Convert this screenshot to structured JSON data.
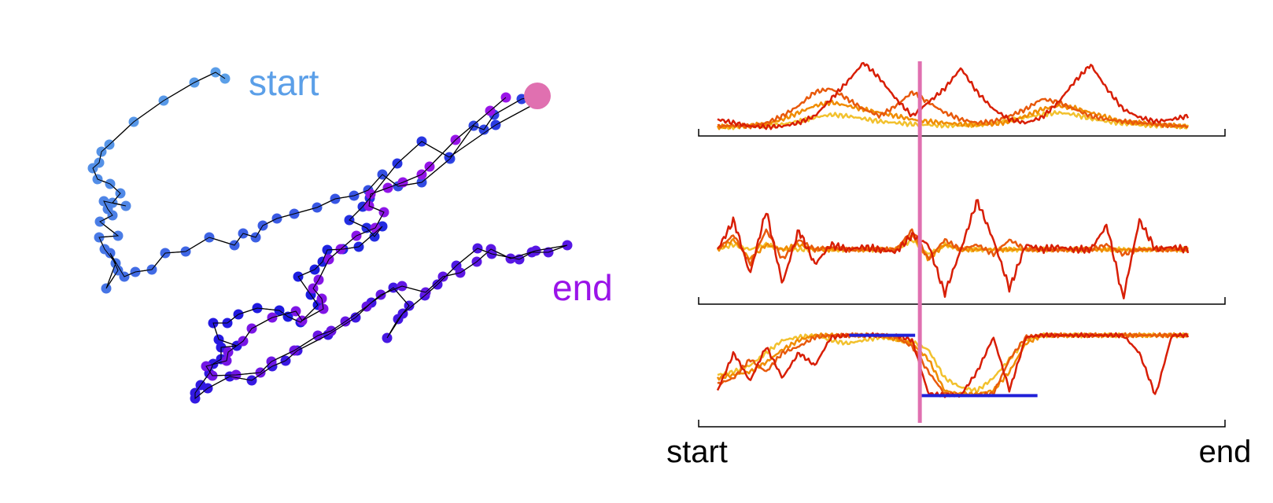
{
  "chart_data": [
    {
      "type": "scatter",
      "description_free": true,
      "annotations": {
        "start": "start",
        "end": "end"
      },
      "colors": {
        "start": "#5b9fe8",
        "middle": "#1a1ae0",
        "end": "#9a14e8",
        "marker": "#e070b0",
        "line": "#000000"
      },
      "path": [
        [
          286,
          100
        ],
        [
          274,
          92
        ],
        [
          247,
          105
        ],
        [
          208,
          128
        ],
        [
          170,
          155
        ],
        [
          139,
          184
        ],
        [
          129,
          193
        ],
        [
          126,
          207
        ],
        [
          118,
          214
        ],
        [
          124,
          228
        ],
        [
          140,
          234
        ],
        [
          153,
          246
        ],
        [
          143,
          258
        ],
        [
          160,
          262
        ],
        [
          132,
          256
        ],
        [
          137,
          266
        ],
        [
          143,
          274
        ],
        [
          127,
          282
        ],
        [
          150,
          300
        ],
        [
          126,
          302
        ],
        [
          133,
          317
        ],
        [
          147,
          335
        ],
        [
          135,
          367
        ],
        [
          150,
          344
        ],
        [
          140,
          322
        ],
        [
          158,
          352
        ],
        [
          172,
          346
        ],
        [
          193,
          343
        ],
        [
          210,
          322
        ],
        [
          236,
          320
        ],
        [
          266,
          302
        ],
        [
          298,
          312
        ],
        [
          309,
          297
        ],
        [
          325,
          302
        ],
        [
          334,
          287
        ],
        [
          352,
          278
        ],
        [
          374,
          272
        ],
        [
          403,
          264
        ],
        [
          426,
          253
        ],
        [
          450,
          249
        ],
        [
          468,
          242
        ],
        [
          486,
          222
        ],
        [
          506,
          237
        ],
        [
          536,
          232
        ],
        [
          572,
          202
        ],
        [
          602,
          160
        ],
        [
          615,
          165
        ],
        [
          628,
          146
        ],
        [
          663,
          126
        ],
        [
          683,
          122
        ],
        [
          680,
          132
        ],
        [
          630,
          159
        ],
        [
          571,
          200
        ],
        [
          536,
          180
        ],
        [
          505,
          208
        ],
        [
          470,
          252
        ],
        [
          461,
          263
        ],
        [
          444,
          280
        ],
        [
          466,
          290
        ],
        [
          476,
          301
        ],
        [
          486,
          288
        ],
        [
          456,
          314
        ],
        [
          436,
          317
        ],
        [
          416,
          318
        ],
        [
          410,
          333
        ],
        [
          400,
          343
        ],
        [
          379,
          352
        ],
        [
          395,
          375
        ],
        [
          404,
          388
        ],
        [
          382,
          410
        ],
        [
          366,
          403
        ],
        [
          355,
          395
        ],
        [
          327,
          392
        ],
        [
          303,
          400
        ],
        [
          289,
          411
        ],
        [
          271,
          411
        ],
        [
          278,
          432
        ],
        [
          301,
          440
        ],
        [
          281,
          442
        ],
        [
          281,
          457
        ],
        [
          271,
          463
        ],
        [
          266,
          475
        ],
        [
          255,
          490
        ],
        [
          248,
          500
        ],
        [
          248,
          507
        ],
        [
          264,
          494
        ],
        [
          292,
          479
        ],
        [
          320,
          484
        ],
        [
          346,
          466
        ],
        [
          363,
          459
        ],
        [
          378,
          446
        ],
        [
          417,
          426
        ],
        [
          452,
          404
        ],
        [
          472,
          385
        ],
        [
          500,
          366
        ],
        [
          520,
          389
        ],
        [
          506,
          406
        ],
        [
          492,
          430
        ],
        [
          512,
          399
        ],
        [
          540,
          376
        ],
        [
          556,
          362
        ],
        [
          580,
          338
        ],
        [
          607,
          316
        ],
        [
          625,
          323
        ],
        [
          660,
          330
        ],
        [
          676,
          321
        ],
        [
          697,
          321
        ],
        [
          721,
          312
        ],
        [
          681,
          319
        ],
        [
          649,
          329
        ],
        [
          624,
          317
        ],
        [
          606,
          333
        ],
        [
          585,
          347
        ],
        [
          563,
          352
        ],
        [
          541,
          372
        ],
        [
          511,
          364
        ],
        [
          484,
          375
        ],
        [
          466,
          390
        ],
        [
          439,
          409
        ],
        [
          421,
          421
        ],
        [
          404,
          427
        ],
        [
          374,
          446
        ],
        [
          345,
          460
        ],
        [
          331,
          474
        ],
        [
          300,
          477
        ],
        [
          270,
          478
        ],
        [
          262,
          466
        ],
        [
          288,
          459
        ],
        [
          290,
          448
        ],
        [
          309,
          434
        ],
        [
          320,
          418
        ],
        [
          346,
          404
        ],
        [
          376,
          396
        ],
        [
          384,
          408
        ],
        [
          411,
          393
        ],
        [
          409,
          380
        ],
        [
          398,
          367
        ],
        [
          405,
          356
        ],
        [
          418,
          330
        ],
        [
          433,
          317
        ],
        [
          453,
          300
        ],
        [
          477,
          290
        ],
        [
          488,
          270
        ],
        [
          469,
          262
        ],
        [
          471,
          247
        ],
        [
          493,
          239
        ],
        [
          512,
          232
        ],
        [
          536,
          222
        ],
        [
          546,
          212
        ],
        [
          579,
          178
        ],
        [
          623,
          141
        ],
        [
          643,
          124
        ]
      ],
      "pink_marker_index": 49
    },
    {
      "type": "line",
      "panels": [
        {
          "series": [
            {
              "color": "#d81e05",
              "values": [
                0.15,
                0.1,
                0.05,
                0.04,
                0.05,
                0.1,
                0.2,
                0.45,
                0.7,
                0.98,
                0.75,
                0.45,
                0.2,
                0.4,
                0.6,
                0.9,
                0.55,
                0.3,
                0.15,
                0.1,
                0.18,
                0.4,
                0.7,
                0.95,
                0.6,
                0.3,
                0.18,
                0.12,
                0.15,
                0.2
              ]
            },
            {
              "color": "#e8590c",
              "values": [
                0.05,
                0.06,
                0.05,
                0.1,
                0.2,
                0.35,
                0.55,
                0.6,
                0.45,
                0.3,
                0.2,
                0.35,
                0.55,
                0.4,
                0.25,
                0.15,
                0.1,
                0.12,
                0.2,
                0.3,
                0.45,
                0.4,
                0.3,
                0.2,
                0.15,
                0.12,
                0.1,
                0.08,
                0.06,
                0.05
              ]
            },
            {
              "color": "#f08c00",
              "values": [
                0.04,
                0.05,
                0.06,
                0.08,
                0.15,
                0.25,
                0.35,
                0.4,
                0.35,
                0.3,
                0.25,
                0.2,
                0.15,
                0.12,
                0.1,
                0.08,
                0.07,
                0.08,
                0.12,
                0.2,
                0.3,
                0.35,
                0.32,
                0.25,
                0.18,
                0.12,
                0.1,
                0.08,
                0.06,
                0.05
              ]
            },
            {
              "color": "#f2c12e",
              "values": [
                0.03,
                0.04,
                0.05,
                0.06,
                0.08,
                0.12,
                0.18,
                0.22,
                0.2,
                0.16,
                0.12,
                0.1,
                0.08,
                0.07,
                0.06,
                0.06,
                0.07,
                0.1,
                0.14,
                0.18,
                0.22,
                0.25,
                0.22,
                0.16,
                0.12,
                0.09,
                0.07,
                0.06,
                0.05,
                0.04
              ]
            }
          ]
        },
        {
          "series": [
            {
              "color": "#d81e05",
              "values": [
                0.0,
                0.6,
                -0.5,
                0.8,
                -0.7,
                0.4,
                -0.3,
                0.1,
                0.0,
                0.05,
                0.0,
                -0.05,
                0.3,
                0.1,
                -0.9,
                0.0,
                1.0,
                0.2,
                -0.8,
                0.1,
                0.0,
                0.05,
                0.0,
                0.0,
                0.5,
                -1.0,
                0.6,
                0.0,
                0.05,
                0.0
              ]
            },
            {
              "color": "#e8590c",
              "values": [
                0.0,
                0.3,
                -0.3,
                0.4,
                -0.2,
                0.2,
                0.0,
                0.05,
                0.0,
                0.0,
                0.0,
                0.0,
                0.4,
                -0.2,
                0.2,
                0.0,
                0.1,
                -0.1,
                0.2,
                0.0,
                0.0,
                0.0,
                0.0,
                0.0,
                0.1,
                -0.1,
                0.0,
                0.0,
                0.0,
                0.0
              ]
            },
            {
              "color": "#f08c00",
              "values": [
                0.0,
                0.2,
                -0.2,
                0.1,
                0.0,
                0.1,
                0.0,
                0.0,
                0.0,
                0.0,
                0.0,
                0.0,
                0.3,
                -0.2,
                0.1,
                0.0,
                0.0,
                0.0,
                0.0,
                0.0,
                0.0,
                0.0,
                0.0,
                0.0,
                0.0,
                0.0,
                0.0,
                0.0,
                0.0,
                0.0
              ]
            },
            {
              "color": "#f2c12e",
              "values": [
                0.0,
                0.1,
                0.0,
                0.1,
                0.0,
                0.0,
                0.0,
                0.0,
                0.0,
                0.0,
                0.0,
                0.0,
                0.2,
                -0.1,
                0.1,
                0.0,
                0.0,
                0.0,
                0.0,
                0.0,
                0.0,
                0.0,
                0.0,
                0.0,
                0.0,
                0.0,
                0.0,
                0.0,
                0.0,
                0.0
              ]
            }
          ]
        },
        {
          "series": [
            {
              "color": "#d81e05",
              "values": [
                0.1,
                0.7,
                0.25,
                0.8,
                0.3,
                0.7,
                0.5,
                0.95,
                0.98,
                0.98,
                0.98,
                0.98,
                0.9,
                0.05,
                0.03,
                0.03,
                0.4,
                0.95,
                0.1,
                0.95,
                0.98,
                0.98,
                0.98,
                0.98,
                0.98,
                0.98,
                0.7,
                0.02,
                0.98,
                0.98
              ]
            },
            {
              "color": "#e8590c",
              "values": [
                0.2,
                0.3,
                0.6,
                0.4,
                0.7,
                0.8,
                0.95,
                0.98,
                0.98,
                0.98,
                0.98,
                0.95,
                0.8,
                0.4,
                0.05,
                0.03,
                0.03,
                0.05,
                0.6,
                0.95,
                0.98,
                0.98,
                0.98,
                0.98,
                0.98,
                0.98,
                0.98,
                0.98,
                0.98,
                0.98
              ]
            },
            {
              "color": "#f08c00",
              "values": [
                0.3,
                0.35,
                0.4,
                0.55,
                0.75,
                0.9,
                0.98,
                0.98,
                0.98,
                0.98,
                0.98,
                0.92,
                0.85,
                0.6,
                0.1,
                0.04,
                0.05,
                0.1,
                0.4,
                0.85,
                0.98,
                0.98,
                0.98,
                0.98,
                0.98,
                0.98,
                0.98,
                0.98,
                0.98,
                0.98
              ]
            },
            {
              "color": "#f2c12e",
              "values": [
                0.35,
                0.4,
                0.5,
                0.7,
                0.9,
                0.95,
                0.98,
                0.9,
                0.85,
                0.9,
                0.95,
                0.9,
                0.88,
                0.75,
                0.3,
                0.15,
                0.1,
                0.3,
                0.6,
                0.9,
                0.98,
                0.98,
                0.98,
                0.98,
                0.98,
                0.98,
                0.98,
                0.98,
                0.98,
                0.98
              ]
            }
          ],
          "reference_segments": [
            {
              "color": "#2020d8",
              "x_from": 0.28,
              "x_to": 0.42,
              "value": 0.98
            },
            {
              "color": "#2020d8",
              "x_from": 0.43,
              "x_to": 0.68,
              "value": 0.02
            }
          ]
        }
      ],
      "marker_line_color": "#e070b0",
      "marker_position": 0.43,
      "x_tick_labels": {
        "start": "start",
        "end": "end"
      }
    }
  ]
}
